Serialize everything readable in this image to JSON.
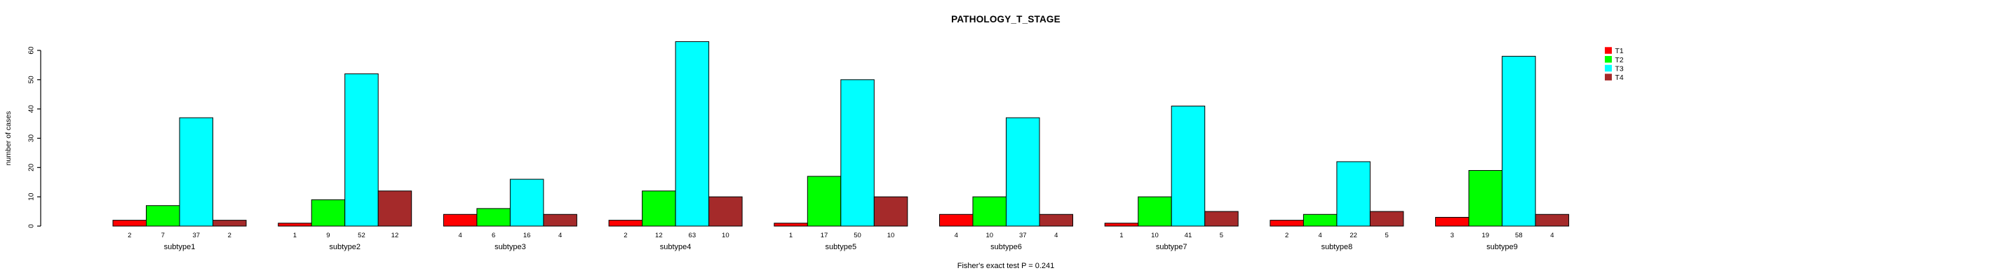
{
  "title": "PATHOLOGY_T_STAGE",
  "annotation": "Fisher's exact test P = 0.241",
  "ylabel": "number of cases",
  "accent_colors": {
    "t1": "#FF0000",
    "t2": "#00FF00",
    "t3": "#00FFFF",
    "t4": "#A52A2A",
    "bar_border": "#000000",
    "axis": "#000000",
    "background": "#FFFFFF"
  },
  "legend": {
    "entries": [
      {
        "label": "T1",
        "color": "#FF0000"
      },
      {
        "label": "T2",
        "color": "#00FF00"
      },
      {
        "label": "T3",
        "color": "#00FFFF"
      },
      {
        "label": "T4",
        "color": "#A52A2A"
      }
    ],
    "position": "right-outside-top"
  },
  "chart_data": {
    "type": "bar",
    "title": "PATHOLOGY_T_STAGE",
    "xlabel": "",
    "ylabel": "number of cases",
    "ylim": [
      0,
      60
    ],
    "yticks": [
      0,
      10,
      20,
      30,
      40,
      50,
      60
    ],
    "ytick_labels": [
      "0",
      "10",
      "20",
      "30",
      "40",
      "50",
      "60"
    ],
    "grid": false,
    "legend_position": "right",
    "bar_value_labels_shown": true,
    "categories": [
      "subtype1",
      "subtype2",
      "subtype3",
      "subtype4",
      "subtype5",
      "subtype6",
      "subtype7",
      "subtype8",
      "subtype9"
    ],
    "series": [
      {
        "name": "T1",
        "color": "#FF0000",
        "values": [
          2,
          1,
          4,
          2,
          1,
          4,
          1,
          2,
          3
        ]
      },
      {
        "name": "T2",
        "color": "#00FF00",
        "values": [
          7,
          9,
          6,
          12,
          17,
          10,
          10,
          4,
          19
        ]
      },
      {
        "name": "T3",
        "color": "#00FFFF",
        "values": [
          37,
          52,
          16,
          63,
          50,
          37,
          41,
          22,
          58
        ]
      },
      {
        "name": "T4",
        "color": "#A52A2A",
        "values": [
          2,
          12,
          4,
          10,
          10,
          4,
          5,
          5,
          4
        ]
      }
    ],
    "annotation": "Fisher's exact test P = 0.241"
  }
}
